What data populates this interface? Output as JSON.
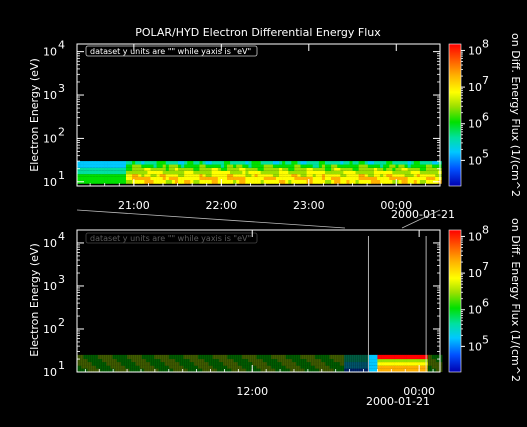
{
  "chart_data": [
    {
      "type": "heatmap",
      "title": "POLAR/HYD  Electron Differential Energy Flux",
      "ylabel": "Electron Energy (eV)",
      "zlabel": "on Diff. Energy Flux (1/(cm^2",
      "annotation": "dataset y units are \"\" while yaxis is \"eV\"",
      "yscale": "log",
      "ylim": [
        8,
        15000
      ],
      "y_ticks": [
        {
          "base": "10",
          "exp": "1",
          "v": 10
        },
        {
          "base": "10",
          "exp": "2",
          "v": 100
        },
        {
          "base": "10",
          "exp": "3",
          "v": 1000
        },
        {
          "base": "10",
          "exp": "4",
          "v": 10000
        }
      ],
      "xlim_hours": [
        20.35,
        24.5
      ],
      "x_ticks": [
        {
          "label": "21:00",
          "h": 21
        },
        {
          "label": "22:00",
          "h": 22
        },
        {
          "label": "23:00",
          "h": 23
        },
        {
          "label": "00:00",
          "h": 24
        }
      ],
      "x_sublabel": "2000-01-21",
      "zscale": "log",
      "zlim": [
        20000,
        150000000
      ],
      "z_ticks": [
        {
          "base": "10",
          "exp": "5",
          "v": 100000
        },
        {
          "base": "10",
          "exp": "6",
          "v": 1000000
        },
        {
          "base": "10",
          "exp": "7",
          "v": 10000000
        },
        {
          "base": "10",
          "exp": "8",
          "v": 100000000
        }
      ],
      "flux_band": {
        "energy_range_eV": [
          9,
          30
        ],
        "dominant_level": "1e6-1e7"
      }
    },
    {
      "type": "heatmap",
      "ylabel": "Electron Energy (eV)",
      "zlabel": "on Diff. Energy Flux (1/(cm^2",
      "annotation": "dataset y units are \"\" while yaxis is \"eV\"",
      "yscale": "log",
      "ylim": [
        10,
        20000
      ],
      "y_ticks": [
        {
          "base": "10",
          "exp": "1",
          "v": 10
        },
        {
          "base": "10",
          "exp": "2",
          "v": 100
        },
        {
          "base": "10",
          "exp": "3",
          "v": 1000
        },
        {
          "base": "10",
          "exp": "4",
          "v": 10000
        }
      ],
      "xlim_hours": [
        -0.6,
        25.5
      ],
      "x_ticks": [
        {
          "label": "12:00",
          "h": 12
        },
        {
          "label": "00:00",
          "h": 24
        }
      ],
      "x_sublabel": "2000-01-21",
      "zscale": "log",
      "zlim": [
        20000,
        150000000
      ],
      "z_ticks": [
        {
          "base": "10",
          "exp": "5",
          "v": 100000
        },
        {
          "base": "10",
          "exp": "6",
          "v": 1000000
        },
        {
          "base": "10",
          "exp": "7",
          "v": 10000000
        },
        {
          "base": "10",
          "exp": "8",
          "v": 100000000
        }
      ],
      "zoom_window_hours": [
        20.35,
        24.5
      ],
      "flux_band": {
        "energy_range_eV": [
          10,
          25
        ],
        "dominant_level": "1e5-1e6"
      }
    }
  ]
}
